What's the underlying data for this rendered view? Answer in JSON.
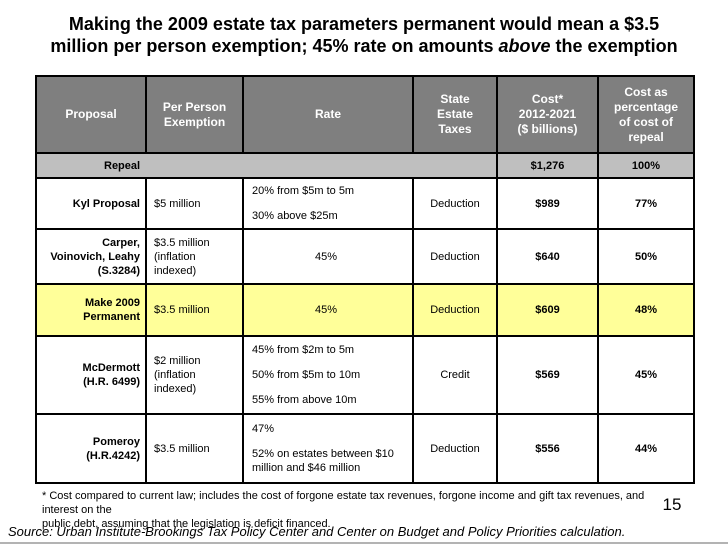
{
  "slide": {
    "title": {
      "line1": "Making the 2009 estate tax parameters permanent would mean a $3.5",
      "line2_pre": "million per person exemption; 45% rate on amounts ",
      "line2_italic": "above",
      "line2_post": " the exemption"
    },
    "footnote": {
      "line1": "* Cost compared to current law; includes the cost of forgone estate tax revenues, forgone income and gift tax revenues, and interest on the",
      "line2": "public debt, assuming that the legislation is deficit financed."
    },
    "page_number": "15",
    "source": "Source: Urban Institute-Brookings Tax Policy Center and Center on Budget and Policy Priorities calculation."
  },
  "colors": {
    "header_bg": "#7f7f7f",
    "header_text": "#ffffff",
    "repeal_row_bg": "#bfbfbf",
    "highlight_row_bg": "#ffff99",
    "grid_border": "#000000"
  },
  "table": {
    "column_headers": [
      {
        "label": "Proposal",
        "lines": [
          "Proposal"
        ]
      },
      {
        "label": "Per Person Exemption",
        "lines": [
          "Per Person",
          "Exemption"
        ]
      },
      {
        "label": "Rate",
        "lines": [
          "Rate"
        ]
      },
      {
        "label": "State Estate Taxes",
        "lines": [
          "State",
          "Estate",
          "Taxes"
        ]
      },
      {
        "label": "Cost* 2012-2021 ($ billions)",
        "lines": [
          "Cost*",
          "2012-2021",
          "($ billions)"
        ]
      },
      {
        "label": "Cost as percentage of cost of repeal",
        "lines": [
          "Cost as",
          "percentage",
          "of cost of",
          "repeal"
        ]
      }
    ],
    "repeal_row": {
      "proposal": "Repeal",
      "cost": "$1,276",
      "pct": "100%"
    },
    "rows": [
      {
        "proposal": "Kyl Proposal",
        "proposal_lines": [
          "Kyl Proposal"
        ],
        "exemption": "$5 million",
        "exemption_lines": [
          "$5 million"
        ],
        "rate_paras": [
          "20% from $5m to 5m",
          "30% above $25m"
        ],
        "rate_align": "left",
        "state_taxes": "Deduction",
        "cost": "$989",
        "pct": "77%",
        "highlight": false
      },
      {
        "proposal": "Carper, Voinovich, Leahy (S.3284)",
        "proposal_lines": [
          "Carper,",
          "Voinovich, Leahy",
          "(S.3284)"
        ],
        "exemption": "$3.5 million (inflation indexed)",
        "exemption_lines": [
          "$3.5 million",
          "(inflation",
          "indexed)"
        ],
        "rate_paras": [
          "45%"
        ],
        "rate_align": "center",
        "state_taxes": "Deduction",
        "cost": "$640",
        "pct": "50%",
        "highlight": false
      },
      {
        "proposal": "Make 2009 Permanent",
        "proposal_lines": [
          "Make 2009",
          "Permanent"
        ],
        "exemption": "$3.5 million",
        "exemption_lines": [
          "$3.5 million"
        ],
        "rate_paras": [
          "45%"
        ],
        "rate_align": "center",
        "state_taxes": "Deduction",
        "cost": "$609",
        "pct": "48%",
        "highlight": true
      },
      {
        "proposal": "McDermott (H.R. 6499)",
        "proposal_lines": [
          "McDermott",
          "(H.R. 6499)"
        ],
        "exemption": "$2 million (inflation indexed)",
        "exemption_lines": [
          "$2 million",
          "(inflation",
          "indexed)"
        ],
        "rate_paras": [
          "45% from $2m to 5m",
          "50% from $5m to 10m",
          "55% from above 10m"
        ],
        "rate_align": "left",
        "state_taxes": "Credit",
        "cost": "$569",
        "pct": "45%",
        "highlight": false
      },
      {
        "proposal": "Pomeroy (H.R.4242)",
        "proposal_lines": [
          "Pomeroy",
          "(H.R.4242)"
        ],
        "exemption": "$3.5 million",
        "exemption_lines": [
          "$3.5 million"
        ],
        "rate_paras": [
          "47%",
          "52% on estates between $10 million and $46 million"
        ],
        "rate_align": "left",
        "state_taxes": "Deduction",
        "cost": "$556",
        "pct": "44%",
        "highlight": false
      }
    ]
  }
}
